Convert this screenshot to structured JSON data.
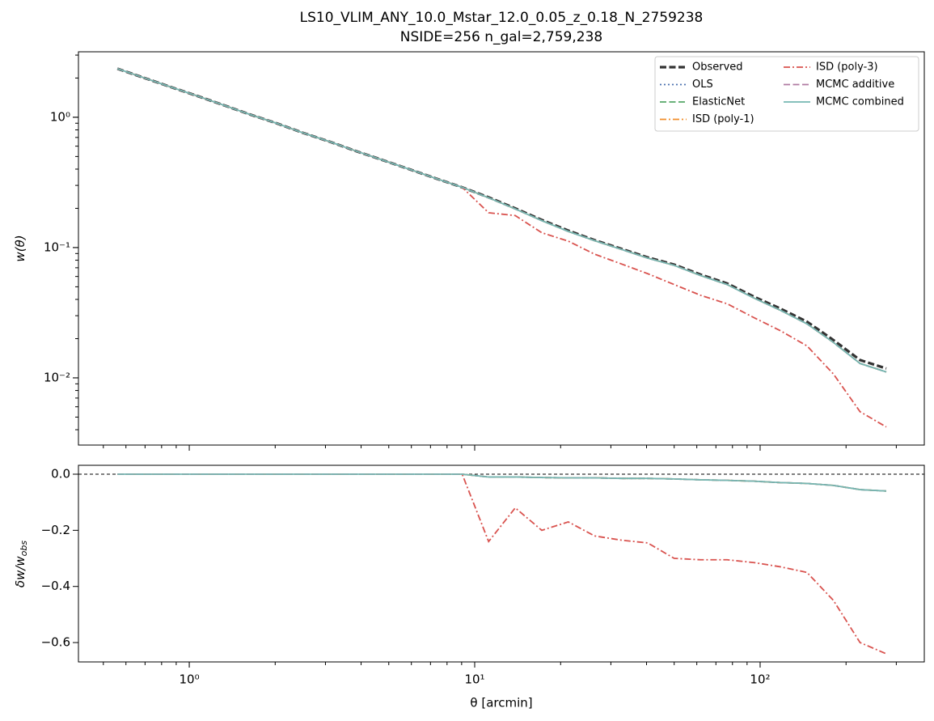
{
  "chart_data": [
    {
      "type": "line",
      "title": "LS10_VLIM_ANY_10.0_Mstar_12.0_0.05_z_0.18_N_2759238",
      "subtitle": "NSIDE=256  n_gal=2,759,238",
      "ylabel": "w(θ)",
      "xscale": "log",
      "yscale": "log",
      "xlim": [
        0.409,
        376
      ],
      "ylim": [
        0.00305,
        3.18
      ],
      "yticks": [
        {
          "value": 1,
          "label": "10⁰"
        },
        {
          "value": 0.1,
          "label": "10⁻¹"
        },
        {
          "value": 0.01,
          "label": "10⁻²"
        }
      ],
      "legend": "upper right",
      "x": [
        0.56,
        0.693,
        0.859,
        1.064,
        1.318,
        1.633,
        2.02,
        2.5,
        3.1,
        3.84,
        4.75,
        5.89,
        7.29,
        9.04,
        11.19,
        13.87,
        17.18,
        21.28,
        26.3,
        32.6,
        40.4,
        50.0,
        61.9,
        76.7,
        95.1,
        117.8,
        145.9,
        180.7,
        223.9,
        276.7
      ],
      "series": [
        {
          "name": "Observed",
          "color": "#333333",
          "dash": "dashed",
          "linewidth": 3.2,
          "values": [
            2.36,
            2.01,
            1.71,
            1.46,
            1.24,
            1.05,
            0.9,
            0.76,
            0.65,
            0.55,
            0.47,
            0.4,
            0.34,
            0.29,
            0.243,
            0.2,
            0.163,
            0.135,
            0.114,
            0.098,
            0.084,
            0.074,
            0.062,
            0.053,
            0.042,
            0.034,
            0.027,
            0.0195,
            0.0137,
            0.0118
          ]
        },
        {
          "name": "OLS",
          "color": "#4c72b0",
          "dash": "dotted",
          "linewidth": 1.8,
          "values": [
            2.36,
            2.01,
            1.71,
            1.46,
            1.24,
            1.05,
            0.9,
            0.76,
            0.65,
            0.55,
            0.47,
            0.4,
            0.34,
            0.29,
            0.241,
            0.198,
            0.161,
            0.133,
            0.113,
            0.097,
            0.083,
            0.073,
            0.061,
            0.052,
            0.041,
            0.033,
            0.026,
            0.0187,
            0.0129,
            0.0111
          ]
        },
        {
          "name": "ElasticNet",
          "color": "#55a868",
          "dash": "dashed",
          "linewidth": 1.8,
          "values": [
            2.36,
            2.01,
            1.71,
            1.46,
            1.24,
            1.05,
            0.9,
            0.76,
            0.65,
            0.55,
            0.47,
            0.4,
            0.34,
            0.29,
            0.241,
            0.198,
            0.161,
            0.133,
            0.113,
            0.097,
            0.083,
            0.073,
            0.061,
            0.052,
            0.041,
            0.033,
            0.026,
            0.0187,
            0.0129,
            0.0111
          ]
        },
        {
          "name": "ISD (poly-1)",
          "color": "#f28e2b",
          "dash": "dashdot",
          "linewidth": 1.8,
          "values": [
            2.36,
            2.01,
            1.71,
            1.46,
            1.24,
            1.05,
            0.9,
            0.76,
            0.65,
            0.55,
            0.47,
            0.4,
            0.34,
            0.29,
            0.241,
            0.198,
            0.161,
            0.133,
            0.113,
            0.097,
            0.083,
            0.073,
            0.061,
            0.052,
            0.041,
            0.033,
            0.026,
            0.0187,
            0.0129,
            0.0111
          ]
        },
        {
          "name": "ISD (poly-3)",
          "color": "#d9534f",
          "dash": "dashdot",
          "linewidth": 1.8,
          "values": [
            2.36,
            2.01,
            1.71,
            1.46,
            1.24,
            1.05,
            0.9,
            0.76,
            0.65,
            0.55,
            0.47,
            0.4,
            0.34,
            0.29,
            0.185,
            0.176,
            0.13,
            0.112,
            0.089,
            0.075,
            0.063,
            0.052,
            0.043,
            0.037,
            0.029,
            0.023,
            0.0176,
            0.0107,
            0.0055,
            0.0042
          ]
        },
        {
          "name": "MCMC additive",
          "color": "#b07aa1",
          "dash": "dashed",
          "linewidth": 1.8,
          "values": [
            2.36,
            2.01,
            1.71,
            1.46,
            1.24,
            1.05,
            0.9,
            0.76,
            0.65,
            0.55,
            0.47,
            0.4,
            0.34,
            0.29,
            0.241,
            0.198,
            0.161,
            0.133,
            0.113,
            0.097,
            0.083,
            0.073,
            0.061,
            0.052,
            0.041,
            0.033,
            0.026,
            0.0187,
            0.0129,
            0.0111
          ]
        },
        {
          "name": "MCMC combined",
          "color": "#76b7b2",
          "dash": "solid",
          "linewidth": 1.8,
          "values": [
            2.36,
            2.01,
            1.71,
            1.46,
            1.24,
            1.05,
            0.9,
            0.76,
            0.65,
            0.55,
            0.47,
            0.4,
            0.34,
            0.29,
            0.241,
            0.198,
            0.161,
            0.133,
            0.113,
            0.097,
            0.083,
            0.073,
            0.061,
            0.052,
            0.041,
            0.033,
            0.026,
            0.0187,
            0.0129,
            0.0111
          ]
        }
      ]
    },
    {
      "type": "line",
      "ylabel": "δw/w",
      "ylabel_sub": "obs",
      "xlabel": "θ [arcmin]",
      "xscale": "log",
      "xlim": [
        0.409,
        376
      ],
      "ylim": [
        -0.669,
        0.0317
      ],
      "xticks": [
        {
          "value": 1,
          "label": "10⁰"
        },
        {
          "value": 10,
          "label": "10¹"
        },
        {
          "value": 100,
          "label": "10²"
        }
      ],
      "yticks": [
        {
          "value": 0,
          "label": "0.0"
        },
        {
          "value": -0.2,
          "label": "−0.2"
        },
        {
          "value": -0.4,
          "label": "−0.4"
        },
        {
          "value": -0.6,
          "label": "−0.6"
        }
      ],
      "hline": 0,
      "x": [
        0.56,
        0.693,
        0.859,
        1.064,
        1.318,
        1.633,
        2.02,
        2.5,
        3.1,
        3.84,
        4.75,
        5.89,
        7.29,
        9.04,
        11.19,
        13.87,
        17.18,
        21.28,
        26.3,
        32.6,
        40.4,
        50.0,
        61.9,
        76.7,
        95.1,
        117.8,
        145.9,
        180.7,
        223.9,
        276.7
      ],
      "series": [
        {
          "color": "#4c72b0",
          "dash": "dotted",
          "linewidth": 1.8,
          "values": [
            0,
            0,
            0,
            0,
            0,
            0,
            0,
            0,
            0,
            0,
            0,
            0,
            0,
            0,
            -0.01,
            -0.01,
            -0.012,
            -0.013,
            -0.013,
            -0.015,
            -0.015,
            -0.017,
            -0.02,
            -0.022,
            -0.025,
            -0.03,
            -0.033,
            -0.04,
            -0.055,
            -0.06
          ]
        },
        {
          "color": "#55a868",
          "dash": "dashed",
          "linewidth": 1.8,
          "values": [
            0,
            0,
            0,
            0,
            0,
            0,
            0,
            0,
            0,
            0,
            0,
            0,
            0,
            0,
            -0.01,
            -0.01,
            -0.012,
            -0.013,
            -0.013,
            -0.015,
            -0.015,
            -0.017,
            -0.02,
            -0.022,
            -0.025,
            -0.03,
            -0.033,
            -0.04,
            -0.055,
            -0.06
          ]
        },
        {
          "color": "#f28e2b",
          "dash": "dashdot",
          "linewidth": 1.8,
          "values": [
            0,
            0,
            0,
            0,
            0,
            0,
            0,
            0,
            0,
            0,
            0,
            0,
            0,
            0,
            -0.01,
            -0.01,
            -0.012,
            -0.013,
            -0.013,
            -0.015,
            -0.015,
            -0.017,
            -0.02,
            -0.022,
            -0.025,
            -0.03,
            -0.033,
            -0.04,
            -0.055,
            -0.06
          ]
        },
        {
          "color": "#d9534f",
          "dash": "dashdot",
          "linewidth": 1.8,
          "values": [
            0,
            0,
            0,
            0,
            0,
            0,
            0,
            0,
            0,
            0,
            0,
            0,
            0,
            0,
            -0.24,
            -0.12,
            -0.2,
            -0.17,
            -0.22,
            -0.235,
            -0.245,
            -0.3,
            -0.305,
            -0.305,
            -0.315,
            -0.33,
            -0.35,
            -0.45,
            -0.6,
            -0.64
          ]
        },
        {
          "color": "#b07aa1",
          "dash": "dashed",
          "linewidth": 1.8,
          "values": [
            0,
            0,
            0,
            0,
            0,
            0,
            0,
            0,
            0,
            0,
            0,
            0,
            0,
            0,
            -0.01,
            -0.01,
            -0.012,
            -0.013,
            -0.013,
            -0.015,
            -0.015,
            -0.017,
            -0.02,
            -0.022,
            -0.025,
            -0.03,
            -0.033,
            -0.04,
            -0.055,
            -0.06
          ]
        },
        {
          "color": "#76b7b2",
          "dash": "solid",
          "linewidth": 1.8,
          "values": [
            0,
            0,
            0,
            0,
            0,
            0,
            0,
            0,
            0,
            0,
            0,
            0,
            0,
            0,
            -0.01,
            -0.01,
            -0.012,
            -0.013,
            -0.013,
            -0.015,
            -0.015,
            -0.017,
            -0.02,
            -0.022,
            -0.025,
            -0.03,
            -0.033,
            -0.04,
            -0.055,
            -0.06
          ]
        }
      ]
    }
  ]
}
